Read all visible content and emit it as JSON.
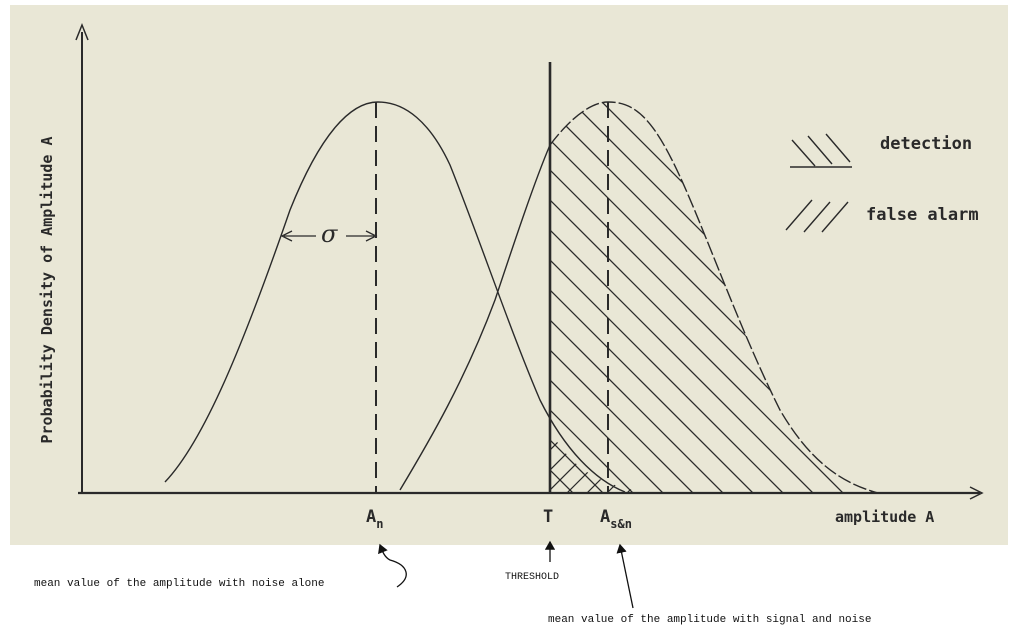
{
  "diagram": {
    "y_axis_label": "Probability Density of Amplitude A",
    "x_axis_label": "amplitude A",
    "sigma_label": "σ",
    "tick_an": {
      "main": "A",
      "sub": "n"
    },
    "tick_t": "T",
    "tick_asn": {
      "main": "A",
      "sub": "s&n"
    },
    "legend": [
      {
        "label": "detection",
        "hatch": "backslash"
      },
      {
        "label": "false alarm",
        "hatch": "slash"
      }
    ],
    "annotations": {
      "noise_mean": "mean value of the amplitude with noise alone",
      "threshold": "THRESHOLD",
      "signal_mean": "mean value of the amplitude with signal and noise"
    }
  },
  "colors": {
    "paper": "#e9e7d6",
    "ink": "#2a2a2a"
  }
}
